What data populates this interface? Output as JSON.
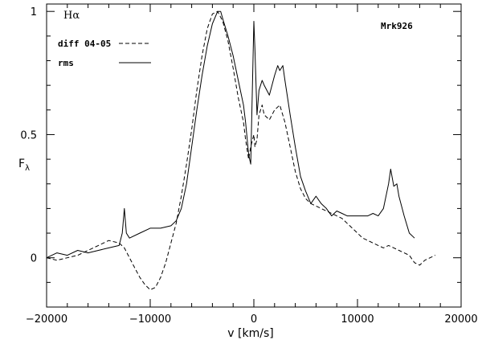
{
  "chart_data": {
    "type": "line",
    "title": "",
    "xlabel": "v [km/s]",
    "ylabel": "F",
    "ylabel_subscript": "λ",
    "xlim": [
      -20000,
      20000
    ],
    "ylim": [
      -0.2,
      1.03
    ],
    "x_ticks": [
      -20000,
      -10000,
      0,
      10000,
      20000
    ],
    "x_tick_labels": [
      "−20000",
      "−10000",
      "0",
      "10000",
      "20000"
    ],
    "y_ticks": [
      0,
      0.5,
      1
    ],
    "y_tick_labels": [
      "0",
      "0.5",
      "1"
    ],
    "grid": false,
    "legend_position": "top-left",
    "annotations": {
      "line_label": "Hα",
      "object_label": "Mrk926"
    },
    "series": [
      {
        "name": "diff 04-05",
        "style": "dashed",
        "x": [
          -20000,
          -19000,
          -18000,
          -17000,
          -16000,
          -15000,
          -14000,
          -13000,
          -12500,
          -12000,
          -11500,
          -11000,
          -10500,
          -10000,
          -9500,
          -9000,
          -8500,
          -8000,
          -7500,
          -7000,
          -6500,
          -6000,
          -5500,
          -5000,
          -4500,
          -4000,
          -3500,
          -3000,
          -2500,
          -2000,
          -1500,
          -1000,
          -800,
          -500,
          -300,
          0,
          100,
          300,
          500,
          800,
          1000,
          1500,
          2000,
          2500,
          3000,
          3500,
          4000,
          4500,
          5000,
          5500,
          6000,
          6500,
          7000,
          7500,
          8000,
          8500,
          9000,
          9500,
          10000,
          10500,
          11000,
          11500,
          12000,
          12500,
          13000,
          13500,
          14000,
          14500,
          15000,
          15500,
          16000,
          16500,
          17000,
          17500
        ],
        "y": [
          0.0,
          -0.01,
          0.0,
          0.01,
          0.03,
          0.05,
          0.07,
          0.06,
          0.04,
          0.0,
          -0.04,
          -0.08,
          -0.11,
          -0.13,
          -0.12,
          -0.08,
          -0.02,
          0.06,
          0.14,
          0.25,
          0.38,
          0.52,
          0.68,
          0.82,
          0.93,
          0.99,
          1.0,
          0.96,
          0.88,
          0.77,
          0.65,
          0.55,
          0.48,
          0.4,
          0.45,
          0.5,
          0.45,
          0.48,
          0.58,
          0.62,
          0.58,
          0.56,
          0.6,
          0.62,
          0.55,
          0.45,
          0.35,
          0.28,
          0.24,
          0.22,
          0.21,
          0.2,
          0.19,
          0.18,
          0.17,
          0.16,
          0.14,
          0.12,
          0.1,
          0.08,
          0.07,
          0.06,
          0.05,
          0.04,
          0.05,
          0.04,
          0.03,
          0.02,
          0.01,
          -0.02,
          -0.03,
          -0.01,
          0.0,
          0.01
        ]
      },
      {
        "name": "rms",
        "style": "solid",
        "x": [
          -20000,
          -19000,
          -18000,
          -17000,
          -16000,
          -15000,
          -14000,
          -13000,
          -12700,
          -12500,
          -12300,
          -12000,
          -11000,
          -10000,
          -9000,
          -8000,
          -7500,
          -7000,
          -6500,
          -6000,
          -5500,
          -5000,
          -4500,
          -4000,
          -3500,
          -3200,
          -3000,
          -2500,
          -2000,
          -1500,
          -1000,
          -800,
          -500,
          -300,
          0,
          100,
          300,
          500,
          800,
          1000,
          1500,
          2000,
          2300,
          2500,
          2800,
          3000,
          3500,
          4000,
          4500,
          5000,
          5500,
          6000,
          6500,
          7000,
          7500,
          8000,
          8500,
          9000,
          9500,
          10000,
          10500,
          11000,
          11500,
          12000,
          12500,
          13000,
          13200,
          13500,
          13800,
          14000,
          14500,
          15000,
          15500
        ],
        "y": [
          0.0,
          0.02,
          0.01,
          0.03,
          0.02,
          0.03,
          0.04,
          0.05,
          0.1,
          0.2,
          0.1,
          0.08,
          0.1,
          0.12,
          0.12,
          0.13,
          0.15,
          0.2,
          0.3,
          0.45,
          0.6,
          0.74,
          0.86,
          0.95,
          1.0,
          1.0,
          0.97,
          0.9,
          0.82,
          0.72,
          0.62,
          0.55,
          0.42,
          0.38,
          0.96,
          0.85,
          0.58,
          0.68,
          0.72,
          0.7,
          0.66,
          0.74,
          0.78,
          0.76,
          0.78,
          0.72,
          0.58,
          0.45,
          0.33,
          0.27,
          0.22,
          0.25,
          0.22,
          0.2,
          0.17,
          0.19,
          0.18,
          0.17,
          0.17,
          0.17,
          0.17,
          0.17,
          0.18,
          0.17,
          0.2,
          0.3,
          0.36,
          0.29,
          0.3,
          0.25,
          0.17,
          0.1,
          0.08
        ]
      }
    ]
  },
  "colors": {
    "background": "#ffffff",
    "ink": "#000000"
  }
}
